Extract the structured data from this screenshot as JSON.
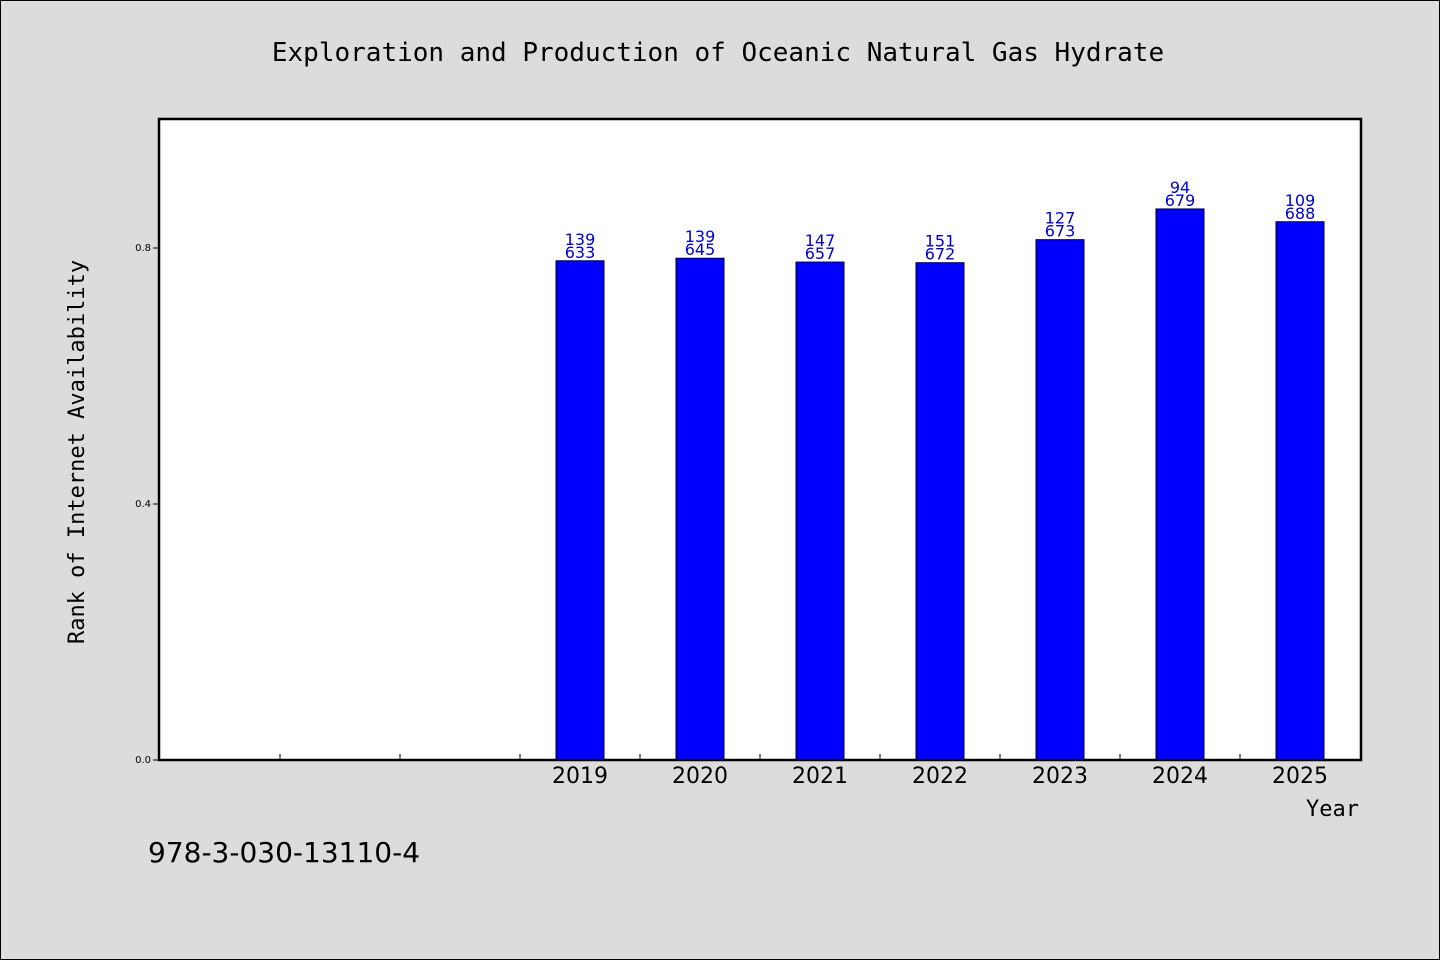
{
  "chart_data": {
    "type": "bar",
    "title": "Exploration and Production of Oceanic Natural Gas Hydrate",
    "xlabel": "Year",
    "ylabel": "Rank of Internet Availability",
    "categories": [
      "",
      "",
      "",
      "2019",
      "2020",
      "2021",
      "2022",
      "2023",
      "2024",
      "2025"
    ],
    "values": [
      null,
      null,
      null,
      0.78,
      0.784,
      0.778,
      0.777,
      0.813,
      0.861,
      0.841
    ],
    "bar_labels": [
      null,
      null,
      null,
      [
        "139",
        "633"
      ],
      [
        "139",
        "645"
      ],
      [
        "147",
        "657"
      ],
      [
        "151",
        "672"
      ],
      [
        "127",
        "673"
      ],
      [
        "94",
        "679"
      ],
      [
        "109",
        "688"
      ]
    ],
    "ylim": [
      0,
      1.0
    ],
    "yticks": [
      0.0,
      0.4,
      0.8
    ],
    "ytick_labels": [
      "0.0",
      "0.4",
      "0.8"
    ],
    "bar_color": "#0000ff",
    "label_color": "#0000cc",
    "grid": false,
    "legend": "none"
  },
  "footer": {
    "isbn": "978-3-030-13110-4"
  }
}
